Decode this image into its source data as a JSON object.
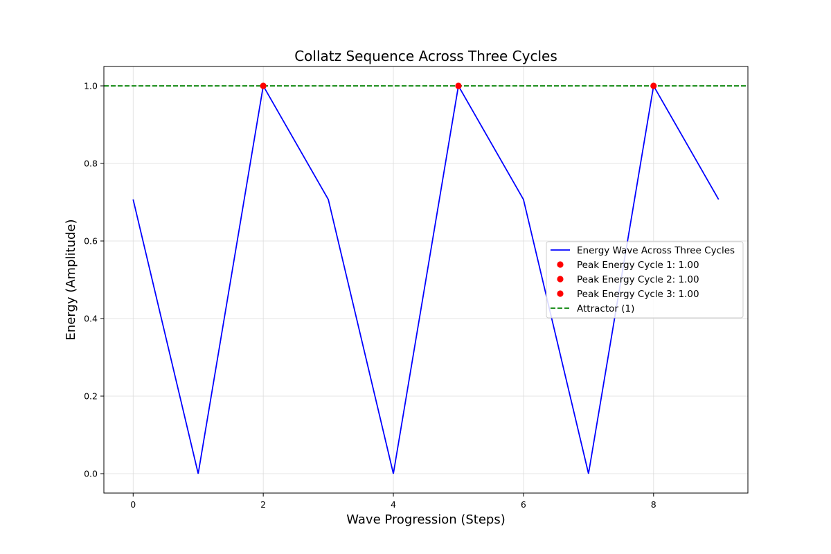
{
  "chart_data": {
    "type": "line",
    "title": "Collatz Sequence Across Three Cycles",
    "xlabel": "Wave Progression (Steps)",
    "ylabel": "Energy (Amplitude)",
    "xlim": [
      -0.45,
      9.45
    ],
    "ylim": [
      -0.05,
      1.05
    ],
    "grid": true,
    "legend_position": "center-right",
    "x_ticks": [
      "0",
      "2",
      "4",
      "6",
      "8"
    ],
    "x_tick_values": [
      0,
      2,
      4,
      6,
      8
    ],
    "y_ticks": [
      "0.0",
      "0.2",
      "0.4",
      "0.6",
      "0.8",
      "1.0"
    ],
    "y_tick_values": [
      0.0,
      0.2,
      0.4,
      0.6,
      0.8,
      1.0
    ],
    "series": [
      {
        "name": "Energy Wave Across Three Cycles",
        "color": "#0000ff",
        "x": [
          0,
          1,
          2,
          3,
          4,
          5,
          6,
          7,
          8,
          9
        ],
        "y": [
          0.707,
          0.0,
          1.0,
          0.707,
          0.0,
          1.0,
          0.707,
          0.0,
          1.0,
          0.707
        ]
      }
    ],
    "peaks": [
      {
        "name": "Peak Energy Cycle 1: 1.00",
        "x": 2,
        "y": 1.0,
        "color": "#ff0000"
      },
      {
        "name": "Peak Energy Cycle 2: 1.00",
        "x": 5,
        "y": 1.0,
        "color": "#ff0000"
      },
      {
        "name": "Peak Energy Cycle 3: 1.00",
        "x": 8,
        "y": 1.0,
        "color": "#ff0000"
      }
    ],
    "attractor": {
      "name": "Attractor (1)",
      "y": 1.0,
      "color": "#008000",
      "style": "dashed"
    }
  }
}
